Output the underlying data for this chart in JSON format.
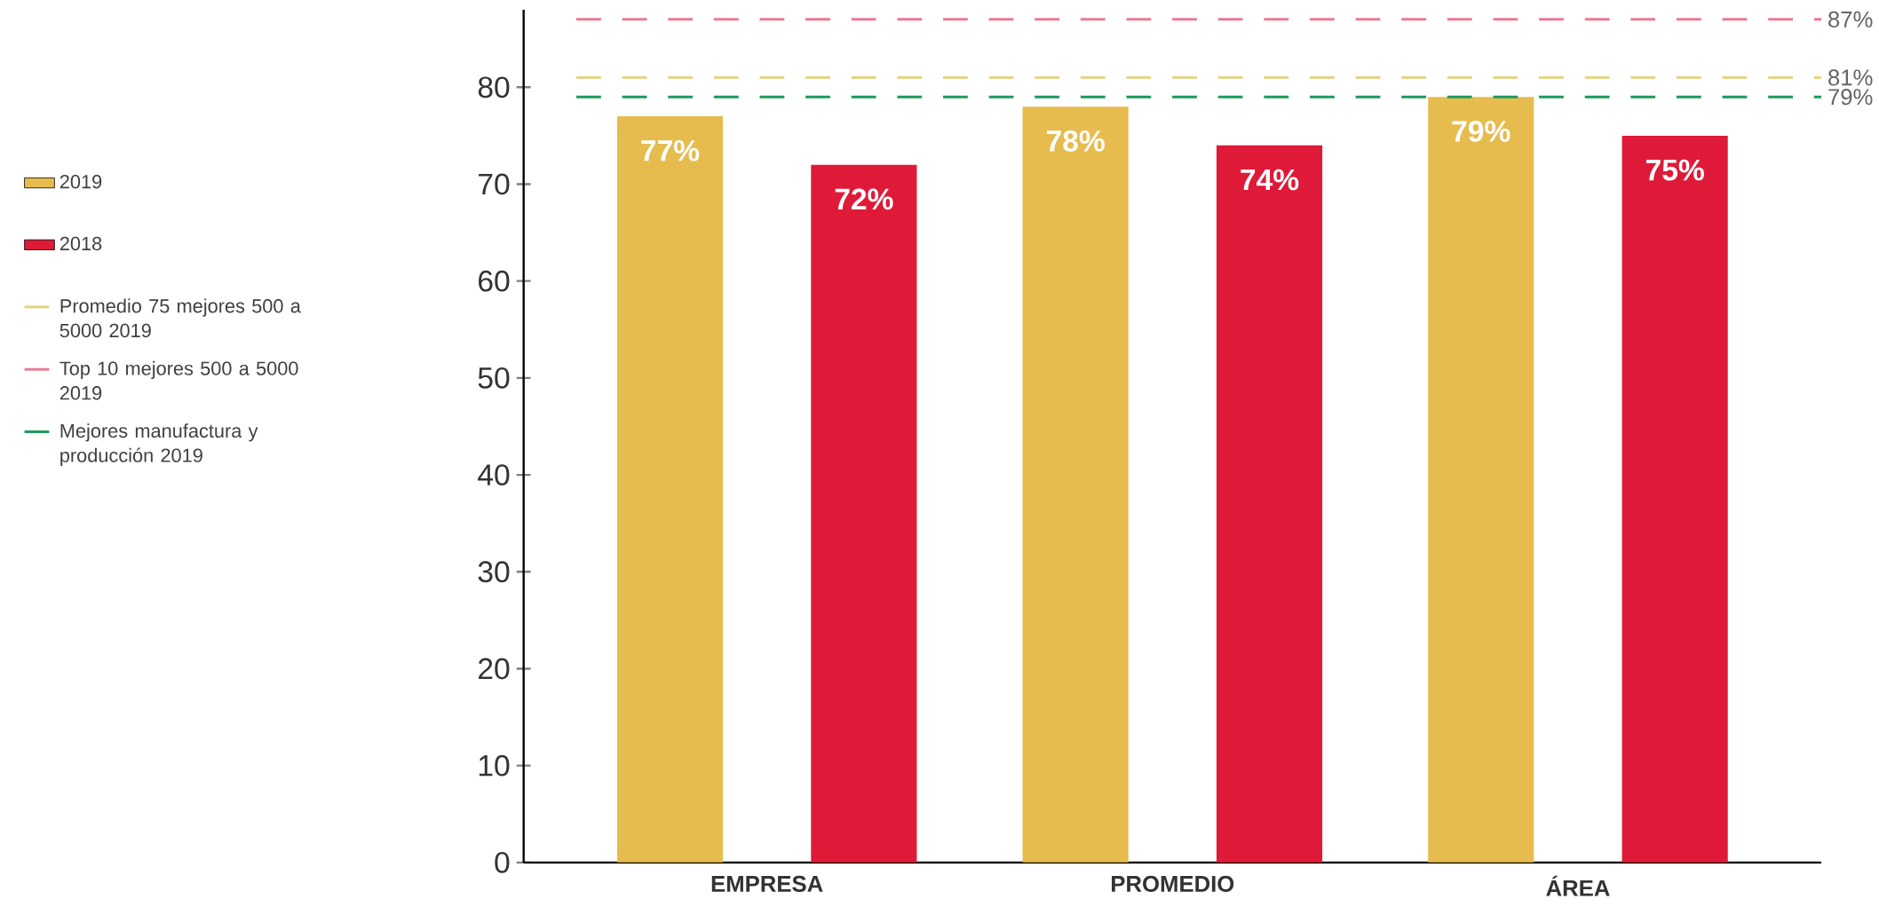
{
  "chart_data": {
    "type": "bar",
    "categories": [
      "EMPRESA",
      "PROMEDIO",
      "ÁREA"
    ],
    "series": [
      {
        "name": "2019",
        "color": "#e6bc4e",
        "values": [
          77,
          78,
          79
        ],
        "value_labels": [
          "77%",
          "78%",
          "79%"
        ]
      },
      {
        "name": "2018",
        "color": "#de1a38",
        "values": [
          72,
          74,
          75
        ],
        "value_labels": [
          "72%",
          "74%",
          "75%"
        ]
      }
    ],
    "ylim": [
      0,
      88
    ],
    "yticks": [
      0,
      10,
      20,
      30,
      40,
      50,
      60,
      70,
      80
    ],
    "ref_lines": [
      {
        "axis": "y",
        "value": 81,
        "label": "Promedio 75 mejores 500 a 5000 2019",
        "color": "#e8d07a",
        "line_style": "dashed"
      },
      {
        "axis": "y",
        "value": 87,
        "label": "Top 10 mejores 500 a 5000 2019",
        "color": "#e87b95",
        "line_style": "dashed"
      },
      {
        "axis": "y",
        "value": 79,
        "label": "Mejores manufactura y producción 2019",
        "color": "#1c9a5c",
        "line_style": "dashed"
      }
    ],
    "annotations": [
      "87%",
      "81%",
      "79%"
    ],
    "legend": "left",
    "grid": false
  }
}
